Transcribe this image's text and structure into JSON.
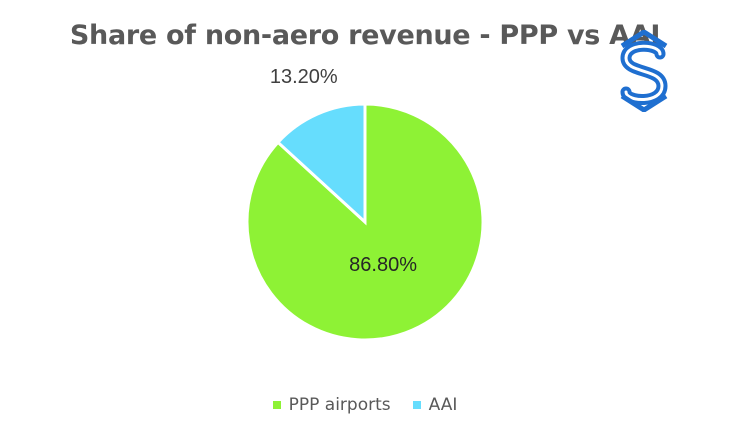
{
  "colors": {
    "ppp": "#8EF235",
    "aai": "#66DDFD",
    "title": "#595959",
    "logo_blue": "#1F6FD0"
  },
  "logo": {
    "icon": "s-shield-logo-icon"
  },
  "chart_data": {
    "type": "pie",
    "title": "Share of non-aero revenue - PPP vs AAI",
    "categories": [
      "PPP airports",
      "AAI"
    ],
    "values": [
      86.8,
      13.2
    ],
    "labels": [
      "86.80%",
      "13.20%"
    ],
    "legend_position": "bottom",
    "legend": [
      "PPP airports",
      "AAI"
    ]
  }
}
